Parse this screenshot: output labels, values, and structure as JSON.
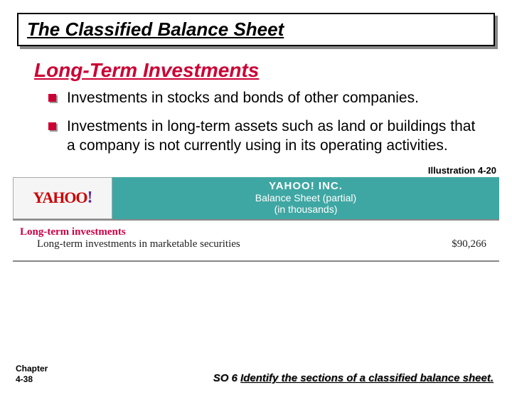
{
  "title": "The Classified Balance Sheet",
  "section_heading": "Long-Term Investments",
  "bullets": [
    "Investments in stocks and bonds of other companies.",
    "Investments in long-term assets such as land or buildings that a company is not currently using in its operating activities."
  ],
  "illustration_label": "Illustration 4-20",
  "figure": {
    "logo_text": "YAHOO",
    "logo_bang": "!",
    "company": "YAHOO! INC.",
    "subtitle1": "Balance Sheet (partial)",
    "subtitle2": "(in thousands)",
    "row_heading": "Long-term investments",
    "row_label": "Long-term investments in marketable securities",
    "row_value": "$90,266"
  },
  "chapter_line1": "Chapter",
  "chapter_line2": "4-38",
  "so_prefix": "SO 6  ",
  "so_text": "Identify the sections of a classified balance sheet.",
  "colors": {
    "accent": "#cc0033",
    "banner": "#3fa7a3"
  }
}
